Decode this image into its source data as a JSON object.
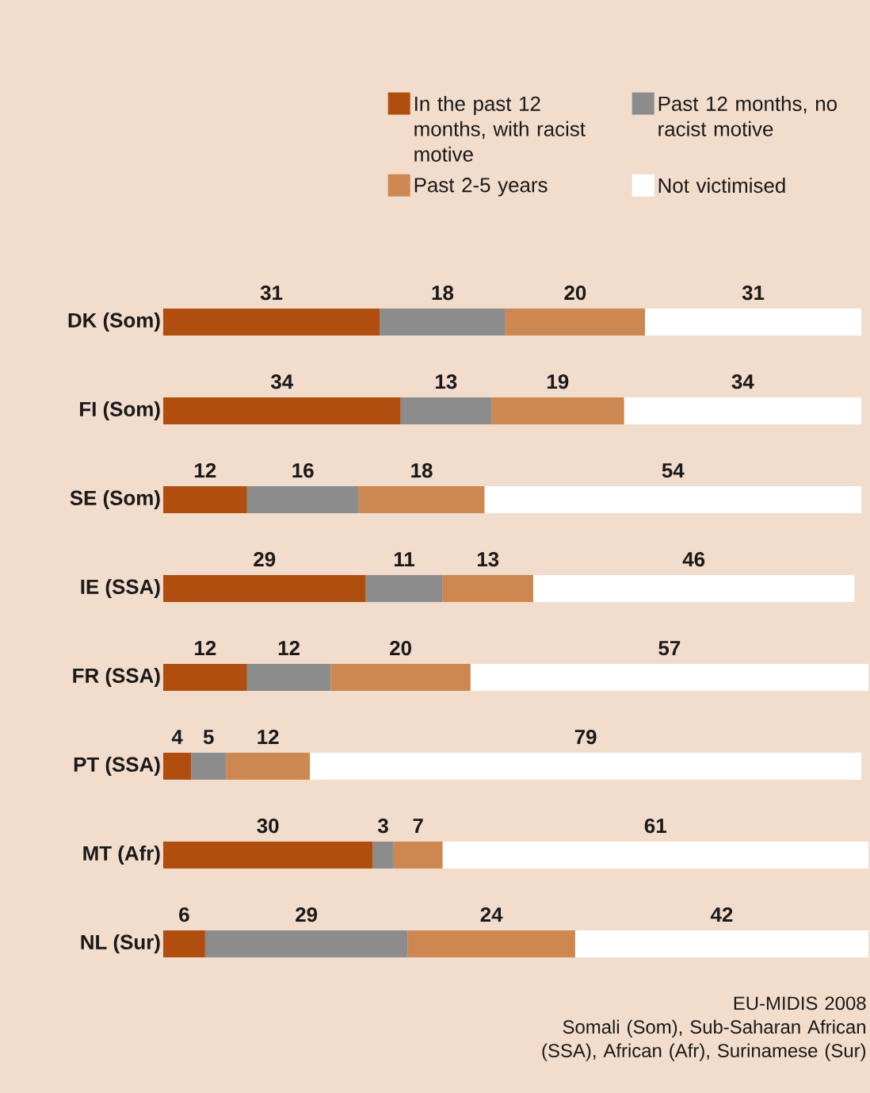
{
  "chart_data": {
    "type": "bar",
    "orientation": "horizontal",
    "stacked": true,
    "categories": [
      "DK (Som)",
      "FI (Som)",
      "SE (Som)",
      "IE (SSA)",
      "FR (SSA)",
      "PT (SSA)",
      "MT (Afr)",
      "NL (Sur)"
    ],
    "series": [
      {
        "name": "In the past 12 months, with racist motive",
        "color": "#b04e0f",
        "values": [
          31,
          34,
          12,
          29,
          12,
          4,
          30,
          6
        ]
      },
      {
        "name": "Past 12 months, no racist motive",
        "color": "#8c8c8c",
        "values": [
          18,
          13,
          16,
          11,
          12,
          5,
          3,
          29
        ]
      },
      {
        "name": "Past 2-5 years",
        "color": "#cc8850",
        "values": [
          20,
          19,
          18,
          13,
          20,
          12,
          7,
          24
        ]
      },
      {
        "name": "Not victimised",
        "color": "#ffffff",
        "values": [
          31,
          34,
          54,
          46,
          57,
          79,
          61,
          42
        ]
      }
    ],
    "xlim": [
      0,
      101
    ],
    "tick_labels": "y",
    "data_labels": true,
    "legend": "top",
    "grid": false,
    "annotations": [
      "EU-MIDIS 2008",
      "Somali (Som), Sub-Saharan African (SSA), African (Afr), Surinamese (Sur)"
    ]
  }
}
